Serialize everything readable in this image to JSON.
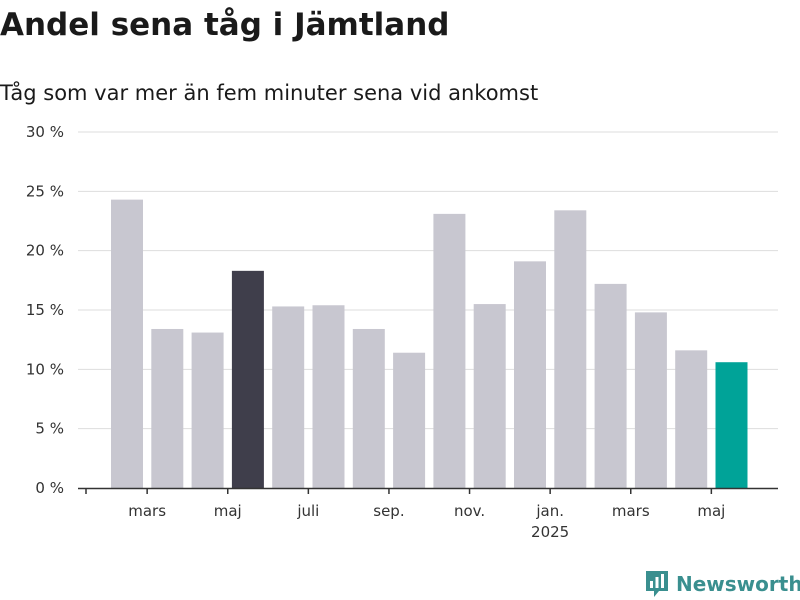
{
  "title": "Andel sena tåg i Jämtland",
  "subtitle": "Tåg som var mer än fem minuter sena vid ankomst",
  "brand": "Newsworthy",
  "colors": {
    "bar_default": "#c8c7d0",
    "bar_highlight_dark": "#3f3e4b",
    "bar_highlight_current": "#00a398",
    "grid": "#dddddd",
    "axis": "#333333",
    "brand": "#3a8f8f"
  },
  "chart_data": {
    "type": "bar",
    "title": "Andel sena tåg i Jämtland",
    "subtitle": "Tåg som var mer än fem minuter sena vid ankomst",
    "xlabel": "",
    "ylabel": "",
    "ylim": [
      0,
      30
    ],
    "yticks": [
      "0 %",
      "5 %",
      "10 %",
      "15 %",
      "20 %",
      "25 %",
      "30 %"
    ],
    "ytick_values": [
      0,
      5,
      10,
      15,
      20,
      25,
      30
    ],
    "x_tick_labels": [
      {
        "after_bar": 1,
        "label": "mars"
      },
      {
        "after_bar": 3,
        "label": "maj"
      },
      {
        "after_bar": 5,
        "label": "juli"
      },
      {
        "after_bar": 7,
        "label": "sep."
      },
      {
        "after_bar": 9,
        "label": "nov."
      },
      {
        "after_bar": 11,
        "label": "jan.",
        "sublabel": "2025"
      },
      {
        "after_bar": 13,
        "label": "mars"
      },
      {
        "after_bar": 15,
        "label": "maj"
      }
    ],
    "values": [
      24.3,
      13.4,
      13.1,
      18.3,
      15.3,
      15.4,
      13.4,
      11.4,
      23.1,
      15.5,
      19.1,
      23.4,
      17.2,
      14.8,
      11.6,
      10.6
    ],
    "highlight": [
      {
        "index": 3,
        "style": "dark"
      },
      {
        "index": 15,
        "style": "current"
      }
    ],
    "grid": true
  }
}
